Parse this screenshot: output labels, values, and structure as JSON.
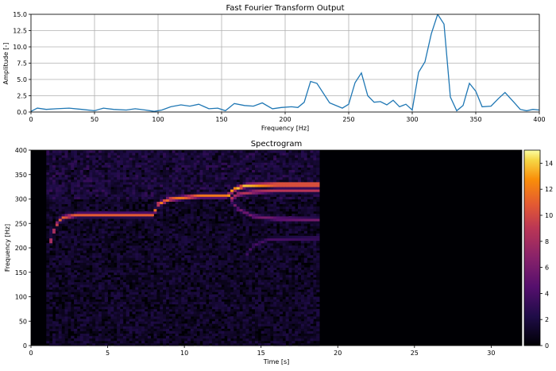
{
  "chart_data": [
    {
      "type": "line",
      "title": "Fast Fourier Transform Output",
      "xlabel": "Frequency [Hz]",
      "ylabel": "Amplitude [-]",
      "xlim": [
        0,
        400
      ],
      "ylim": [
        0,
        15
      ],
      "grid": true,
      "xticks": [
        "0",
        "50",
        "100",
        "150",
        "200",
        "250",
        "300",
        "350",
        "400"
      ],
      "yticks": [
        "0.0",
        "2.5",
        "5.0",
        "7.5",
        "10.0",
        "12.5",
        "15.0"
      ],
      "line_color": "#1f77b4",
      "x": [
        0,
        5,
        12,
        20,
        30,
        40,
        50,
        57,
        65,
        75,
        82,
        90,
        97,
        103,
        110,
        118,
        125,
        132,
        140,
        147,
        153,
        160,
        168,
        175,
        182,
        190,
        197,
        205,
        210,
        215,
        220,
        225,
        235,
        245,
        250,
        255,
        260,
        265,
        270,
        275,
        280,
        285,
        290,
        295,
        300,
        305,
        310,
        315,
        320,
        325,
        330,
        335,
        340,
        345,
        350,
        355,
        362,
        368,
        373,
        380,
        385,
        390,
        395,
        400
      ],
      "y": [
        0.1,
        0.6,
        0.4,
        0.5,
        0.6,
        0.4,
        0.2,
        0.6,
        0.4,
        0.3,
        0.5,
        0.3,
        0.1,
        0.3,
        0.8,
        1.1,
        0.9,
        1.2,
        0.5,
        0.6,
        0.2,
        1.3,
        1.0,
        0.9,
        1.4,
        0.5,
        0.7,
        0.8,
        0.7,
        1.5,
        4.7,
        4.4,
        1.4,
        0.6,
        1.2,
        4.5,
        6.0,
        2.5,
        1.5,
        1.6,
        1.1,
        1.8,
        0.8,
        1.2,
        0.3,
        6.1,
        7.7,
        12.0,
        15.0,
        13.5,
        2.3,
        0.2,
        1.0,
        4.4,
        3.2,
        0.8,
        0.9,
        2.1,
        3.0,
        1.5,
        0.4,
        0.2,
        0.4,
        0.3
      ]
    },
    {
      "type": "heatmap",
      "title": "Spectrogram",
      "xlabel": "Time [s]",
      "ylabel": "Frequency [Hz]",
      "xlim": [
        0,
        32
      ],
      "ylim": [
        0,
        400
      ],
      "xticks": [
        "0",
        "5",
        "10",
        "15",
        "20",
        "25",
        "30"
      ],
      "yticks": [
        "0",
        "50",
        "100",
        "150",
        "200",
        "250",
        "300",
        "350",
        "400"
      ],
      "colormap": "inferno",
      "signal_time_range": [
        1,
        18.8
      ],
      "colorbar_range": [
        0,
        15
      ],
      "colorbar_ticks": [
        "0",
        "2",
        "4",
        "6",
        "8",
        "10",
        "12",
        "14"
      ],
      "dominant_tracks": [
        {
          "t": [
            1.3,
            1.6,
            2.0,
            3.0,
            5.0,
            8.0
          ],
          "f": [
            215,
            245,
            262,
            268,
            268,
            268
          ],
          "level": 11
        },
        {
          "t": [
            8.0,
            8.3,
            9.0,
            11.0,
            12.8
          ],
          "f": [
            270,
            290,
            300,
            307,
            307
          ],
          "level": 12
        },
        {
          "t": [
            12.8,
            13.2,
            14.0,
            16.0,
            18.8
          ],
          "f": [
            305,
            320,
            328,
            330,
            330
          ],
          "level": 14
        }
      ],
      "secondary_tracks": [
        {
          "t": [
            13.0,
            13.5,
            14.5,
            16.0,
            18.8
          ],
          "f": [
            300,
            280,
            265,
            260,
            258
          ],
          "level": 6
        },
        {
          "t": [
            13.0,
            13.5,
            14.5,
            16.0,
            18.8
          ],
          "f": [
            300,
            310,
            315,
            318,
            318
          ],
          "level": 9
        },
        {
          "t": [
            14.0,
            14.5,
            15.5,
            18.8
          ],
          "f": [
            185,
            205,
            218,
            220
          ],
          "level": 4
        }
      ]
    }
  ]
}
